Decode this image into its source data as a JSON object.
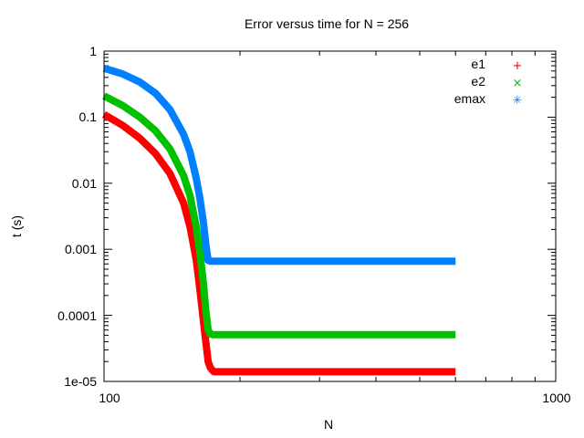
{
  "chart_data": {
    "type": "scatter",
    "title": "Error versus time for N = 256",
    "xlabel": "N",
    "ylabel": "t (s)",
    "xscale": "log",
    "yscale": "log",
    "xlim": [
      100,
      1000
    ],
    "ylim": [
      1e-05,
      1
    ],
    "x_ticks": [
      "100",
      "1000"
    ],
    "y_ticks": [
      "1",
      "0.1",
      "0.01",
      "0.001",
      "0.0001",
      "1e-05"
    ],
    "legend_position": "top-right",
    "grid": false,
    "series": [
      {
        "name": "e1",
        "color": "#ff0000",
        "marker": "+",
        "x": [
          100,
          110,
          120,
          130,
          140,
          150,
          155,
          160,
          163,
          166,
          168,
          170,
          172,
          175,
          180,
          200,
          250,
          300,
          400,
          500,
          600
        ],
        "values": [
          0.11,
          0.075,
          0.048,
          0.028,
          0.014,
          0.005,
          0.0022,
          0.0007,
          0.00025,
          8e-05,
          4e-05,
          2e-05,
          1.6e-05,
          1.4e-05,
          1.4e-05,
          1.4e-05,
          1.4e-05,
          1.4e-05,
          1.4e-05,
          1.4e-05,
          1.4e-05
        ]
      },
      {
        "name": "e2",
        "color": "#00c000",
        "marker": "x",
        "x": [
          100,
          110,
          120,
          130,
          140,
          150,
          155,
          160,
          163,
          166,
          168,
          170,
          172,
          175,
          180,
          200,
          250,
          300,
          400,
          500,
          600
        ],
        "values": [
          0.21,
          0.15,
          0.1,
          0.062,
          0.033,
          0.013,
          0.0065,
          0.0022,
          0.0009,
          0.0003,
          0.00012,
          6e-05,
          5.2e-05,
          5.1e-05,
          5.1e-05,
          5.1e-05,
          5.1e-05,
          5.1e-05,
          5.1e-05,
          5.1e-05,
          5.1e-05
        ]
      },
      {
        "name": "emax",
        "color": "#0080ff",
        "marker": "*",
        "x": [
          100,
          110,
          120,
          130,
          140,
          150,
          155,
          160,
          163,
          166,
          168,
          170,
          172,
          175,
          180,
          200,
          250,
          300,
          400,
          500,
          600
        ],
        "values": [
          0.55,
          0.45,
          0.34,
          0.23,
          0.13,
          0.055,
          0.03,
          0.012,
          0.006,
          0.0025,
          0.0012,
          0.00068,
          0.00066,
          0.00066,
          0.00066,
          0.00066,
          0.00066,
          0.00066,
          0.00066,
          0.00066,
          0.00066
        ]
      }
    ]
  },
  "labels": {
    "title": "Error versus time for N = 256",
    "xlabel": "N",
    "ylabel": "t (s)",
    "yticks": [
      "1",
      "0.1",
      "0.01",
      "0.001",
      "0.0001",
      "1e-05"
    ],
    "xticks": [
      "100",
      "1000"
    ],
    "legend": [
      "e1",
      "e2",
      "emax"
    ]
  }
}
